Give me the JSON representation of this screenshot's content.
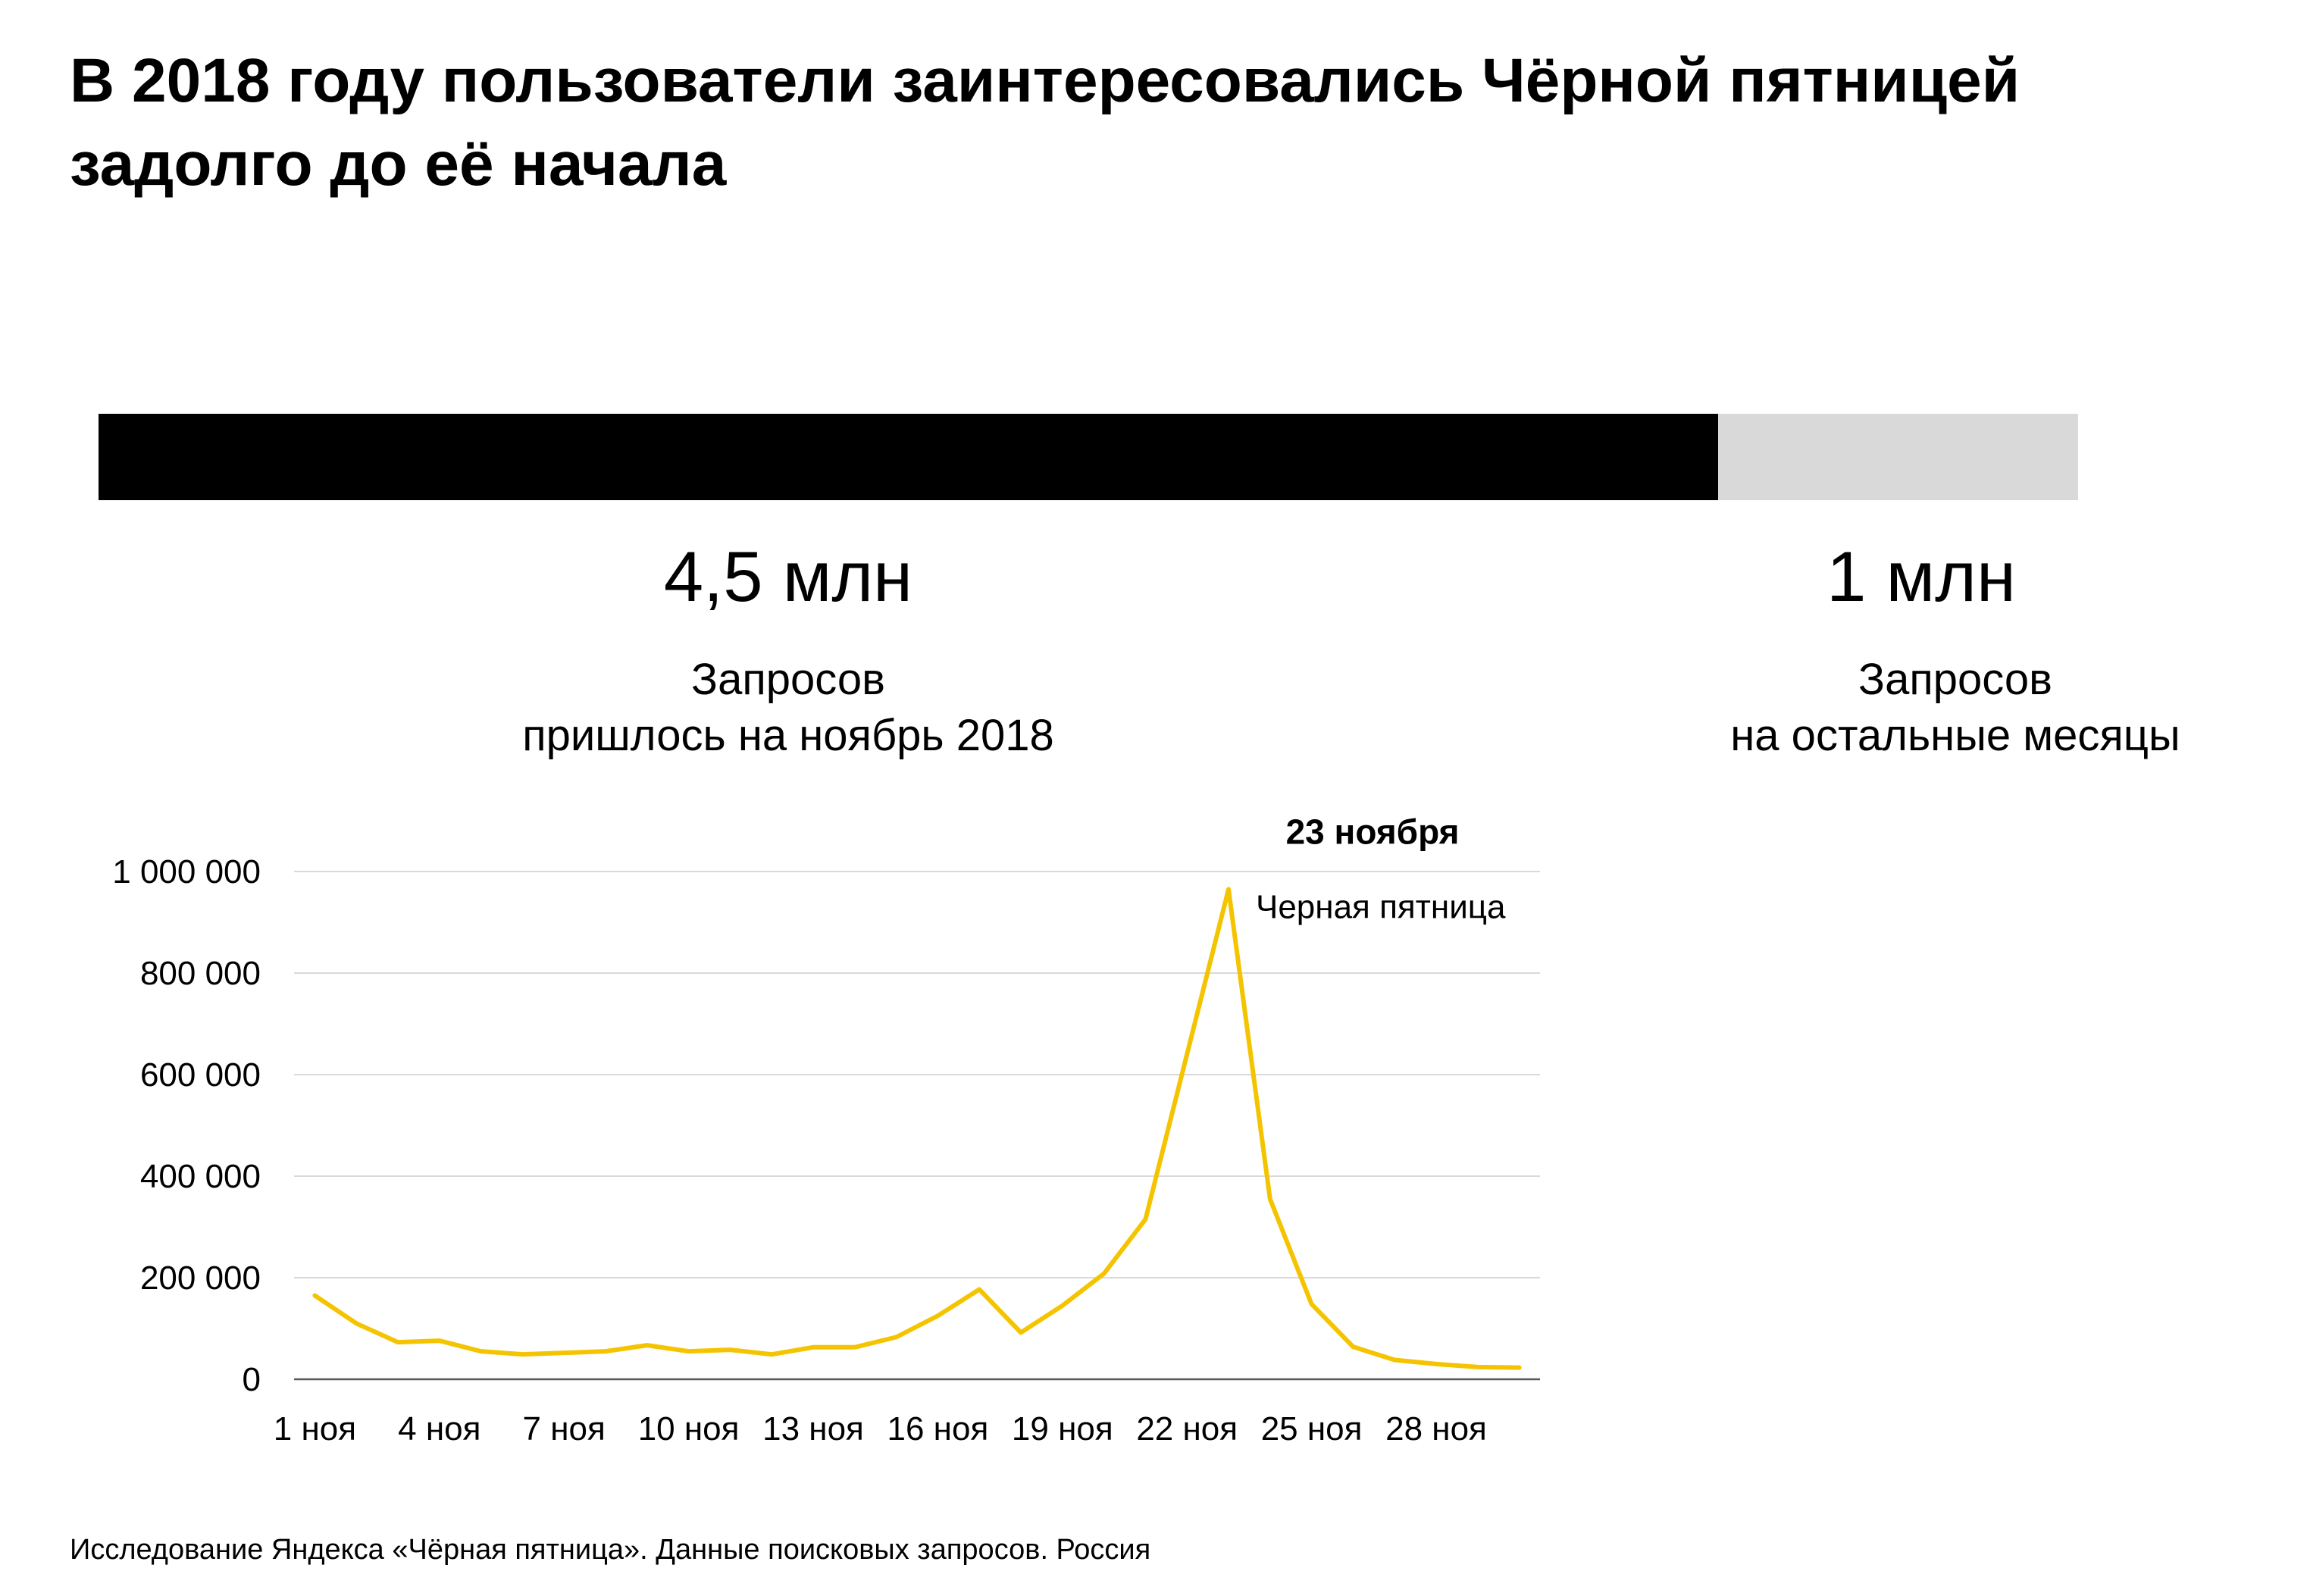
{
  "title": {
    "line1": "В 2018 году пользователи заинтересовались Чёрной пятницей",
    "line2": "задолго до её начала"
  },
  "summary": {
    "colors": {
      "november": "#000000",
      "rest": "#d9d9d9"
    },
    "november": {
      "value": "4,5 млн",
      "desc_line1": "Запросов",
      "desc_line2": "пришлось на ноябрь 2018",
      "amount": 4.5
    },
    "rest": {
      "value": "1 млн",
      "desc_line1": "Запросов",
      "desc_line2": "на остальные месяцы",
      "amount": 1
    }
  },
  "chart_data": {
    "type": "line",
    "title": "",
    "xlabel": "",
    "ylabel": "",
    "ylim": [
      0,
      1000000
    ],
    "yticks": [
      0,
      200000,
      400000,
      600000,
      800000,
      1000000
    ],
    "ytick_labels": [
      "0",
      "200 000",
      "400 000",
      "600 000",
      "800 000",
      "1 000 000"
    ],
    "xtick_labels": [
      "1 ноя",
      "4 ноя",
      "7 ноя",
      "10 ноя",
      "13 ноя",
      "16 ноя",
      "19 ноя",
      "22 ноя",
      "25 ноя",
      "28 ноя"
    ],
    "xtick_days": [
      1,
      4,
      7,
      10,
      13,
      16,
      19,
      22,
      25,
      28
    ],
    "x": [
      1,
      2,
      3,
      4,
      5,
      6,
      7,
      8,
      9,
      10,
      11,
      12,
      13,
      14,
      15,
      16,
      17,
      18,
      19,
      20,
      21,
      22,
      23,
      24,
      25,
      26,
      27,
      28,
      29,
      30
    ],
    "series": [
      {
        "color": "#f5c400",
        "values": [
          165000,
          110000,
          73000,
          76000,
          55000,
          49000,
          52000,
          55000,
          67000,
          55000,
          58000,
          49000,
          63000,
          63000,
          83000,
          125000,
          177000,
          92000,
          145000,
          208000,
          315000,
          640000,
          965000,
          355000,
          148000,
          64000,
          38000,
          30000,
          24000,
          23000
        ]
      }
    ],
    "grid": true,
    "annotation": {
      "date_label": "23 ноября",
      "event_label": "Черная пятница",
      "x": 23,
      "y": 965000
    }
  },
  "footnote": "Исследование Яндекса «Чёрная пятница». Данные поисковых запросов. Россия"
}
